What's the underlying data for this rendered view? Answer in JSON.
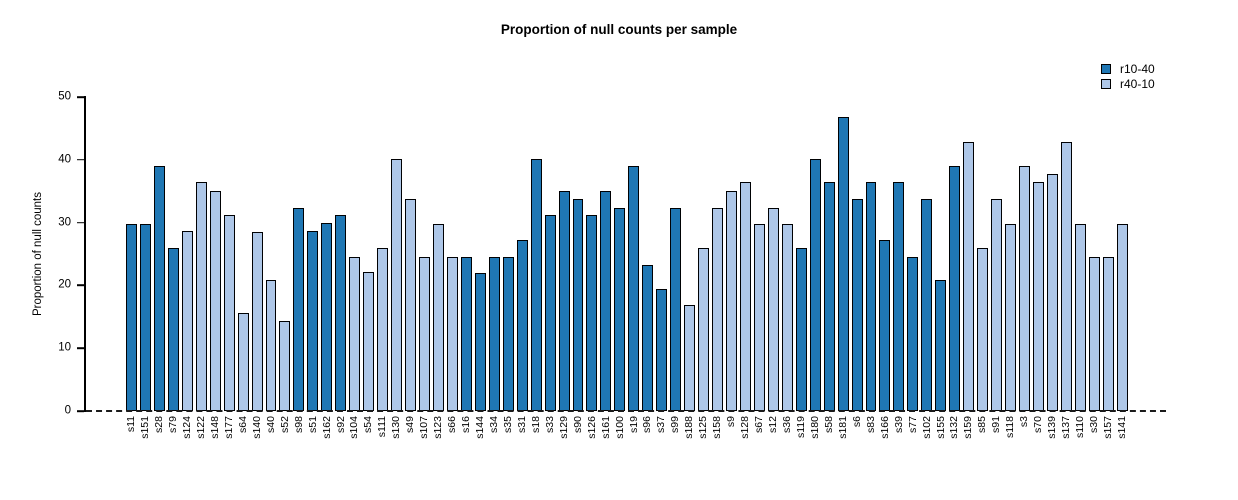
{
  "title": "Proportion of null counts per sample",
  "y_axis": {
    "label": "Proportion of null counts",
    "ticks": [
      0,
      10,
      20,
      30,
      40,
      50
    ],
    "max": 50
  },
  "legend": [
    {
      "label": "r10-40",
      "color": "#1F77B4"
    },
    {
      "label": "r40-10",
      "color": "#AEC7E8"
    }
  ],
  "chart_data": {
    "type": "bar",
    "title": "Proportion of null counts per sample",
    "xlabel": "",
    "ylabel": "Proportion of null counts",
    "ylim": [
      0,
      50
    ],
    "grid": false,
    "legend_position": "top-right",
    "baseline_style": "dashed",
    "series": [
      {
        "name": "r10-40",
        "color": "#1F77B4"
      },
      {
        "name": "r40-10",
        "color": "#AEC7E8"
      }
    ],
    "categories": [
      "s11",
      "s151",
      "s28",
      "s79",
      "s124",
      "s122",
      "s148",
      "s177",
      "s64",
      "s140",
      "s40",
      "s52",
      "s98",
      "s51",
      "s162",
      "s92",
      "s104",
      "s54",
      "s111",
      "s130",
      "s49",
      "s107",
      "s123",
      "s66",
      "s16",
      "s144",
      "s34",
      "s35",
      "s31",
      "s18",
      "s33",
      "s129",
      "s90",
      "s126",
      "s161",
      "s100",
      "s19",
      "s96",
      "s37",
      "s99",
      "s188",
      "s125",
      "s158",
      "s9",
      "s128",
      "s67",
      "s12",
      "s36",
      "s119",
      "s180",
      "s58",
      "s181",
      "s6",
      "s83",
      "s166",
      "s39",
      "s77",
      "s102",
      "s155",
      "s132",
      "s159",
      "s85",
      "s91",
      "s118",
      "s3",
      "s70",
      "s139",
      "s137",
      "s110",
      "s30",
      "s157",
      "s141"
    ],
    "values": [
      29.8,
      29.8,
      39.0,
      26.0,
      28.6,
      36.4,
      35.0,
      31.2,
      15.6,
      28.5,
      20.8,
      14.3,
      32.4,
      28.6,
      30.0,
      31.2,
      24.5,
      22.1,
      26.0,
      40.2,
      33.8,
      24.5,
      29.8,
      24.5,
      24.5,
      22.0,
      24.5,
      24.5,
      27.3,
      40.2,
      31.2,
      35.0,
      33.7,
      31.2,
      35.0,
      32.4,
      39.0,
      23.3,
      19.5,
      32.4,
      16.9,
      26.0,
      32.4,
      35.0,
      36.4,
      29.8,
      32.4,
      29.8,
      26.0,
      40.2,
      36.4,
      46.8,
      33.7,
      36.4,
      27.3,
      36.4,
      24.5,
      33.7,
      20.8,
      39.0,
      42.8,
      26.0,
      33.7,
      29.8,
      39.0,
      36.4,
      37.7,
      42.8,
      29.8,
      24.5,
      24.5,
      29.8
    ],
    "groups": [
      "r10-40",
      "r10-40",
      "r10-40",
      "r10-40",
      "r40-10",
      "r40-10",
      "r40-10",
      "r40-10",
      "r40-10",
      "r40-10",
      "r40-10",
      "r40-10",
      "r10-40",
      "r10-40",
      "r10-40",
      "r10-40",
      "r40-10",
      "r40-10",
      "r40-10",
      "r40-10",
      "r40-10",
      "r40-10",
      "r40-10",
      "r40-10",
      "r10-40",
      "r10-40",
      "r10-40",
      "r10-40",
      "r10-40",
      "r10-40",
      "r10-40",
      "r10-40",
      "r10-40",
      "r10-40",
      "r10-40",
      "r10-40",
      "r10-40",
      "r10-40",
      "r10-40",
      "r10-40",
      "r40-10",
      "r40-10",
      "r40-10",
      "r40-10",
      "r40-10",
      "r40-10",
      "r40-10",
      "r40-10",
      "r10-40",
      "r10-40",
      "r10-40",
      "r10-40",
      "r10-40",
      "r10-40",
      "r10-40",
      "r10-40",
      "r10-40",
      "r10-40",
      "r10-40",
      "r10-40",
      "r40-10",
      "r40-10",
      "r40-10",
      "r40-10",
      "r40-10",
      "r40-10",
      "r40-10",
      "r40-10",
      "r40-10",
      "r40-10",
      "r40-10",
      "r40-10"
    ]
  }
}
